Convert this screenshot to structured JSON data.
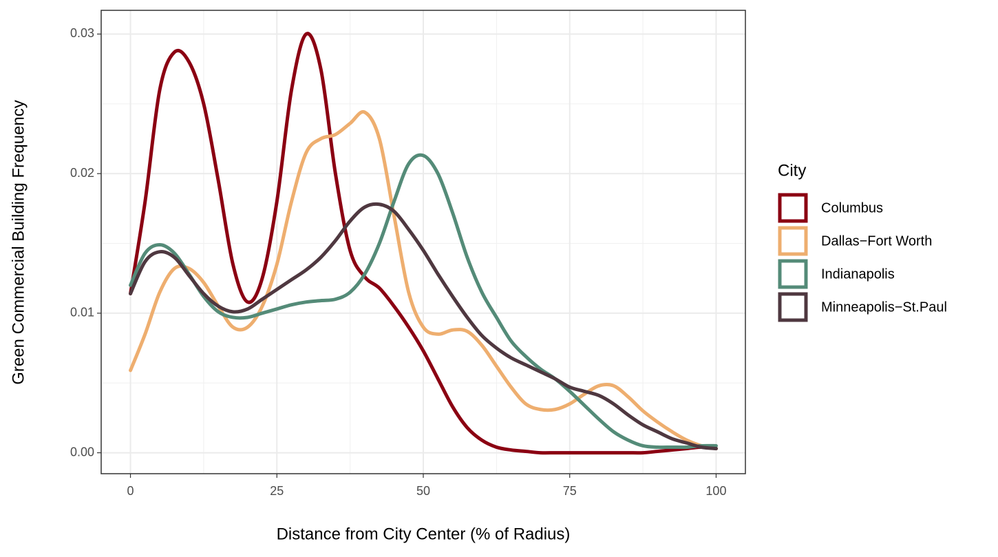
{
  "chart_data": {
    "type": "line",
    "x_label": "Distance from City Center (% of Radius)",
    "y_label": "Green Commercial Building Frequency",
    "legend_title": "City",
    "legend_position": "right",
    "grid": true,
    "xlim": [
      -5,
      105
    ],
    "ylim": [
      -0.0015,
      0.0317
    ],
    "xticks": [
      0,
      25,
      50,
      75,
      100
    ],
    "yticks": [
      {
        "value": 0,
        "label": "0.00"
      },
      {
        "value": 0.01,
        "label": "0.01"
      },
      {
        "value": 0.02,
        "label": "0.02"
      },
      {
        "value": 0.03,
        "label": "0.03"
      }
    ],
    "x": [
      0,
      2.5,
      5,
      7.5,
      10,
      12.5,
      15,
      17.5,
      20,
      22.5,
      25,
      27.5,
      30,
      32.5,
      35,
      37.5,
      40,
      42.5,
      45,
      47.5,
      50,
      52.5,
      55,
      57.5,
      60,
      62.5,
      65,
      67.5,
      70,
      72.5,
      75,
      77.5,
      80,
      82.5,
      85,
      87.5,
      90,
      92.5,
      95,
      97.5,
      100
    ],
    "series": [
      {
        "name": "Columbus",
        "color": "#8b0012",
        "values": [
          0.0114,
          0.018,
          0.026,
          0.0287,
          0.028,
          0.025,
          0.0195,
          0.0135,
          0.0108,
          0.0125,
          0.018,
          0.026,
          0.03,
          0.0275,
          0.02,
          0.0145,
          0.0126,
          0.0118,
          0.0105,
          0.009,
          0.0073,
          0.0053,
          0.0033,
          0.0018,
          0.0009,
          0.0004,
          0.0002,
          0.0001,
          0,
          0,
          0,
          0,
          0,
          0,
          0,
          0,
          0.0001,
          0.0002,
          0.0003,
          0.0004,
          0.0003
        ]
      },
      {
        "name": "Dallas−Fort Worth",
        "color": "#eeae6f",
        "values": [
          0.0059,
          0.0085,
          0.0115,
          0.0132,
          0.0132,
          0.0122,
          0.0105,
          0.009,
          0.009,
          0.0105,
          0.0135,
          0.018,
          0.0215,
          0.0225,
          0.0228,
          0.0236,
          0.0244,
          0.0225,
          0.017,
          0.0115,
          0.009,
          0.0085,
          0.0088,
          0.0087,
          0.0077,
          0.0062,
          0.0047,
          0.0035,
          0.0031,
          0.0031,
          0.0035,
          0.0042,
          0.0048,
          0.0048,
          0.004,
          0.003,
          0.0022,
          0.0015,
          0.0009,
          0.0005,
          0.0003
        ]
      },
      {
        "name": "Indianapolis",
        "color": "#548b78",
        "values": [
          0.012,
          0.0143,
          0.0149,
          0.0143,
          0.0128,
          0.0112,
          0.0101,
          0.0097,
          0.0097,
          0.01,
          0.0103,
          0.0106,
          0.0108,
          0.0109,
          0.011,
          0.0115,
          0.0128,
          0.015,
          0.018,
          0.0207,
          0.0213,
          0.02,
          0.0172,
          0.014,
          0.0115,
          0.0097,
          0.008,
          0.0069,
          0.006,
          0.0053,
          0.0044,
          0.0034,
          0.0024,
          0.0015,
          0.0009,
          0.0005,
          0.0004,
          0.0004,
          0.0004,
          0.0005,
          0.0005
        ]
      },
      {
        "name": "Minneapolis−St.Paul",
        "color": "#4f3840",
        "values": [
          0.0114,
          0.0137,
          0.0144,
          0.014,
          0.0127,
          0.0114,
          0.0105,
          0.0101,
          0.0103,
          0.011,
          0.0117,
          0.0124,
          0.0131,
          0.014,
          0.0152,
          0.0166,
          0.0176,
          0.0178,
          0.0173,
          0.016,
          0.0145,
          0.0128,
          0.0112,
          0.0097,
          0.0084,
          0.0075,
          0.0068,
          0.0063,
          0.0058,
          0.0053,
          0.0047,
          0.0044,
          0.0041,
          0.0035,
          0.0027,
          0.002,
          0.0015,
          0.001,
          0.0007,
          0.0004,
          0.0003
        ]
      }
    ]
  }
}
